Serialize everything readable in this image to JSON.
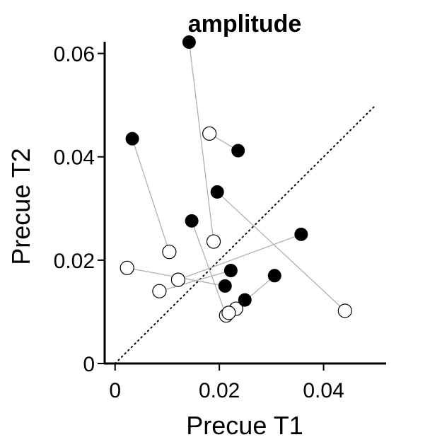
{
  "chart_data": {
    "type": "scatter",
    "title": "amplitude",
    "xlabel": "Precue T1",
    "ylabel": "Precue T2",
    "xlim": [
      -0.002,
      0.052
    ],
    "ylim": [
      0,
      0.062
    ],
    "x_ticks": [
      {
        "value": 0,
        "label": "0"
      },
      {
        "value": 0.02,
        "label": "0.02"
      },
      {
        "value": 0.04,
        "label": "0.04"
      }
    ],
    "y_ticks": [
      {
        "value": 0,
        "label": "0"
      },
      {
        "value": 0.02,
        "label": "0.02"
      },
      {
        "value": 0.04,
        "label": "0.04"
      },
      {
        "value": 0.06,
        "label": "0.06"
      }
    ],
    "reference_line": {
      "from": [
        0,
        0
      ],
      "to": [
        0.05,
        0.05
      ],
      "style": "dotted"
    },
    "grid": false,
    "colors": {
      "filled": "#000000",
      "open_fill": "#ffffff",
      "connector": "#b0b0b0",
      "axis": "#000000"
    },
    "pairs": [
      {
        "filled": [
          0.0142,
          0.0622
        ],
        "open": [
          0.0189,
          0.0236
        ]
      },
      {
        "filled": [
          0.0033,
          0.0435
        ],
        "open": [
          0.0104,
          0.0216
        ]
      },
      {
        "filled": [
          0.0236,
          0.0412
        ],
        "open": [
          0.0181,
          0.0445
        ]
      },
      {
        "filled": [
          0.0196,
          0.0332
        ],
        "open": [
          0.0441,
          0.0102
        ]
      },
      {
        "filled": [
          0.0147,
          0.0276
        ],
        "open": [
          0.0213,
          0.0093
        ]
      },
      {
        "filled": [
          0.0357,
          0.025
        ],
        "open": [
          0.0121,
          0.0162
        ]
      },
      {
        "filled": [
          0.0222,
          0.018
        ],
        "open": [
          0.0085,
          0.014
        ]
      },
      {
        "filled": [
          0.0211,
          0.015
        ],
        "open": [
          0.0023,
          0.0185
        ]
      },
      {
        "filled": [
          0.0306,
          0.017
        ],
        "open": [
          0.0232,
          0.0106
        ]
      },
      {
        "filled": [
          0.0249,
          0.0123
        ],
        "open": [
          0.0218,
          0.0098
        ]
      }
    ]
  }
}
